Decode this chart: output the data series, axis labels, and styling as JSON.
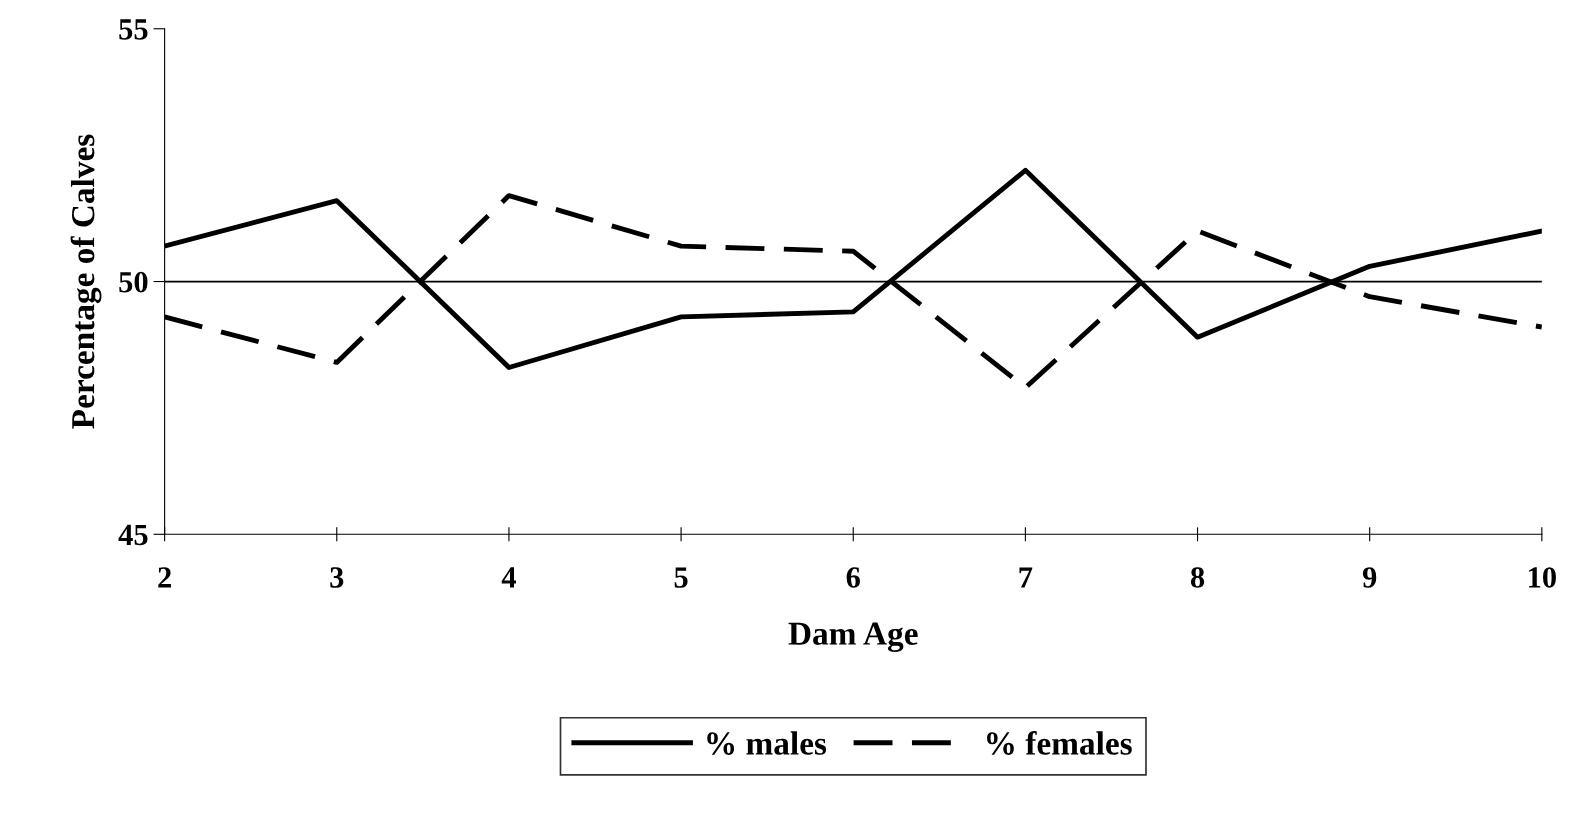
{
  "chart_data": {
    "type": "line",
    "xlabel": "Dam Age",
    "ylabel": "Percentage of Calves",
    "x": [
      2,
      3,
      4,
      5,
      6,
      7,
      8,
      9,
      10
    ],
    "series": [
      {
        "name": "% males",
        "color": "#000000",
        "line_style": "solid",
        "values": [
          50.7,
          51.6,
          48.3,
          49.3,
          49.4,
          52.2,
          48.9,
          50.3,
          51.0
        ]
      },
      {
        "name": "% females",
        "color": "#000000",
        "line_style": "dashed",
        "values": [
          49.3,
          48.4,
          51.7,
          50.7,
          50.6,
          47.9,
          51.0,
          49.7,
          49.1
        ]
      }
    ],
    "xlim": [
      2,
      10
    ],
    "xticks": [
      2,
      3,
      4,
      5,
      6,
      7,
      8,
      9,
      10
    ],
    "ylim": [
      45,
      55
    ],
    "yticks": [
      45,
      50,
      55
    ],
    "ref_lines": [
      {
        "axis": "y",
        "value": 50,
        "color": "#000000"
      }
    ],
    "grid": false,
    "legend": "bottom",
    "marker": "none"
  }
}
